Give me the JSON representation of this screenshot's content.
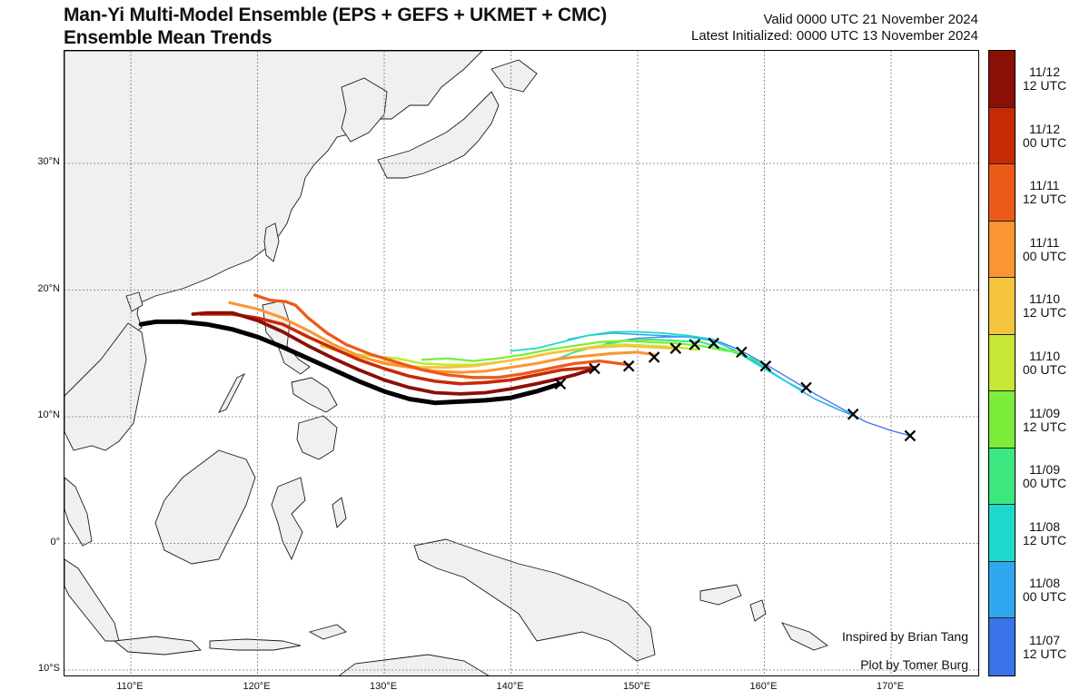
{
  "header": {
    "title_line1": "Man-Yi Multi-Model Ensemble (EPS + GEFS + UKMET + CMC)",
    "title_line2": "Ensemble Mean Trends",
    "valid": "Valid 0000 UTC 21 November 2024",
    "latest": "Latest Initialized: 0000 UTC 13 November 2024"
  },
  "axes": {
    "lat_labels": [
      "30°N",
      "20°N",
      "10°N",
      "0°",
      "10°S"
    ],
    "lon_labels": [
      "110°E",
      "120°E",
      "130°E",
      "140°E",
      "150°E",
      "160°E",
      "170°E"
    ]
  },
  "colorbar": {
    "entries": [
      {
        "date": "11/12",
        "time": "12 UTC",
        "color": "#8a0f05"
      },
      {
        "date": "11/12",
        "time": "00 UTC",
        "color": "#c72a06"
      },
      {
        "date": "11/11",
        "time": "12 UTC",
        "color": "#ec5a1a"
      },
      {
        "date": "11/11",
        "time": "00 UTC",
        "color": "#fb9531"
      },
      {
        "date": "11/10",
        "time": "12 UTC",
        "color": "#f3c43c"
      },
      {
        "date": "11/10",
        "time": "00 UTC",
        "color": "#c6e834"
      },
      {
        "date": "11/09",
        "time": "12 UTC",
        "color": "#7cee3a"
      },
      {
        "date": "11/09",
        "time": "00 UTC",
        "color": "#3ce87f"
      },
      {
        "date": "11/08",
        "time": "12 UTC",
        "color": "#1fd8cc"
      },
      {
        "date": "11/08",
        "time": "00 UTC",
        "color": "#2fa8f0"
      },
      {
        "date": "11/07",
        "time": "12 UTC",
        "color": "#3b73e8"
      }
    ]
  },
  "credits": {
    "inspired": "Inspired by Brian Tang",
    "plot": "Plot by Tomer Burg"
  },
  "tracks": [
    {
      "init": "11/07 12 UTC",
      "color": "#3b73e8",
      "points": [
        [
          146.3,
          15.4
        ],
        [
          148,
          15.9
        ],
        [
          150,
          16.2
        ],
        [
          152,
          16.3
        ],
        [
          154,
          16.3
        ],
        [
          156,
          16.1
        ],
        [
          158,
          15.3
        ],
        [
          160,
          14.2
        ],
        [
          162,
          13.0
        ],
        [
          164,
          11.8
        ],
        [
          166,
          10.7
        ],
        [
          168,
          9.6
        ],
        [
          170,
          8.9
        ],
        [
          171.5,
          8.5
        ]
      ]
    },
    {
      "init": "11/08 00 UTC",
      "color": "#2fa8f0",
      "points": [
        [
          144.5,
          16.1
        ],
        [
          146,
          16.4
        ],
        [
          148,
          16.6
        ],
        [
          150,
          16.5
        ],
        [
          152,
          16.4
        ],
        [
          154,
          16.3
        ],
        [
          156,
          16.0
        ],
        [
          158,
          15.1
        ],
        [
          160,
          13.9
        ],
        [
          162,
          12.6
        ],
        [
          164,
          11.4
        ],
        [
          166,
          10.5
        ],
        [
          167,
          10.1
        ]
      ]
    },
    {
      "init": "11/08 12 UTC",
      "color": "#1fd8cc",
      "points": [
        [
          140,
          15.2
        ],
        [
          142,
          15.4
        ],
        [
          144,
          15.9
        ],
        [
          146,
          16.4
        ],
        [
          148,
          16.7
        ],
        [
          150,
          16.7
        ],
        [
          152,
          16.6
        ],
        [
          154,
          16.4
        ],
        [
          156,
          16.1
        ],
        [
          158,
          15.0
        ],
        [
          160,
          13.8
        ],
        [
          161.5,
          12.9
        ],
        [
          163,
          12.1
        ]
      ]
    },
    {
      "init": "11/09 00 UTC",
      "color": "#3ce87f",
      "points": [
        [
          143.5,
          14.5
        ],
        [
          145,
          15.1
        ],
        [
          147,
          15.6
        ],
        [
          149,
          16.0
        ],
        [
          151,
          16.1
        ],
        [
          153,
          16.0
        ],
        [
          155,
          15.9
        ],
        [
          157,
          15.3
        ],
        [
          159,
          14.6
        ],
        [
          160.2,
          14.0
        ]
      ]
    },
    {
      "init": "11/09 12 UTC",
      "color": "#7cee3a",
      "points": [
        [
          133,
          14.5
        ],
        [
          135,
          14.6
        ],
        [
          137,
          14.4
        ],
        [
          139,
          14.6
        ],
        [
          141,
          14.9
        ],
        [
          143,
          15.3
        ],
        [
          145,
          15.6
        ],
        [
          147,
          15.9
        ],
        [
          149,
          16.0
        ],
        [
          151,
          15.9
        ],
        [
          153,
          15.8
        ],
        [
          155,
          15.6
        ],
        [
          157,
          15.2
        ],
        [
          158.2,
          15.1
        ]
      ]
    },
    {
      "init": "11/10 00 UTC",
      "color": "#c6e834",
      "points": [
        [
          127,
          15.0
        ],
        [
          129,
          14.8
        ],
        [
          131,
          14.6
        ],
        [
          133,
          14.2
        ],
        [
          135,
          14.1
        ],
        [
          137,
          14.1
        ],
        [
          139,
          14.3
        ],
        [
          141,
          14.6
        ],
        [
          143,
          15.0
        ],
        [
          145,
          15.3
        ],
        [
          147,
          15.6
        ],
        [
          149,
          15.7
        ],
        [
          151,
          15.6
        ],
        [
          153,
          15.5
        ],
        [
          154.7,
          15.3
        ]
      ]
    },
    {
      "init": "11/10 12 UTC",
      "color": "#f3c43c",
      "points": [
        [
          125,
          15.6
        ],
        [
          127,
          15.0
        ],
        [
          129,
          14.5
        ],
        [
          131,
          14.1
        ],
        [
          133,
          13.9
        ],
        [
          135,
          13.9
        ],
        [
          137,
          14.0
        ],
        [
          139,
          14.3
        ],
        [
          141,
          14.6
        ],
        [
          143,
          15.0
        ],
        [
          145,
          15.3
        ],
        [
          147,
          15.5
        ],
        [
          149,
          15.6
        ],
        [
          151,
          15.5
        ],
        [
          153,
          15.4
        ]
      ]
    },
    {
      "init": "11/11 00 UTC",
      "color": "#fb9531",
      "points": [
        [
          117.8,
          19.0
        ],
        [
          120,
          18.5
        ],
        [
          122,
          17.8
        ],
        [
          124,
          16.8
        ],
        [
          126,
          15.7
        ],
        [
          128,
          14.8
        ],
        [
          130,
          14.2
        ],
        [
          132,
          13.9
        ],
        [
          134,
          13.6
        ],
        [
          136,
          13.5
        ],
        [
          138,
          13.6
        ],
        [
          140,
          13.9
        ],
        [
          142,
          14.2
        ],
        [
          144,
          14.6
        ],
        [
          146,
          14.8
        ],
        [
          148,
          15.0
        ],
        [
          150,
          15.1
        ],
        [
          151.3,
          14.9
        ]
      ]
    },
    {
      "init": "11/11 12 UTC",
      "color": "#ec5a1a",
      "points": [
        [
          119.8,
          19.6
        ],
        [
          121,
          19.2
        ],
        [
          122.2,
          19.1
        ],
        [
          123,
          18.8
        ],
        [
          124,
          17.8
        ],
        [
          125.5,
          16.6
        ],
        [
          127,
          15.7
        ],
        [
          129,
          14.9
        ],
        [
          131,
          14.3
        ],
        [
          133,
          13.7
        ],
        [
          135,
          13.3
        ],
        [
          137,
          13.1
        ],
        [
          139,
          13.1
        ],
        [
          141,
          13.4
        ],
        [
          143,
          13.8
        ],
        [
          145,
          14.2
        ],
        [
          147,
          14.4
        ],
        [
          149.3,
          14.1
        ]
      ]
    },
    {
      "init": "11/12 00 UTC",
      "color": "#c72a06",
      "points": [
        [
          115.5,
          18.1
        ],
        [
          118,
          18.1
        ],
        [
          120,
          17.8
        ],
        [
          122,
          17.3
        ],
        [
          124,
          16.3
        ],
        [
          126,
          15.4
        ],
        [
          128,
          14.5
        ],
        [
          130,
          13.8
        ],
        [
          132,
          13.2
        ],
        [
          134,
          12.8
        ],
        [
          136,
          12.6
        ],
        [
          138,
          12.7
        ],
        [
          140,
          12.9
        ],
        [
          142,
          13.3
        ],
        [
          144,
          13.7
        ],
        [
          146.6,
          13.9
        ]
      ]
    },
    {
      "init": "11/12 12 UTC",
      "color": "#8a0f05",
      "points": [
        [
          114.9,
          18.1
        ],
        [
          116,
          18.2
        ],
        [
          118,
          18.2
        ],
        [
          120,
          17.6
        ],
        [
          122,
          16.7
        ],
        [
          124,
          15.6
        ],
        [
          126,
          14.6
        ],
        [
          128,
          13.7
        ],
        [
          130,
          12.9
        ],
        [
          132,
          12.3
        ],
        [
          134,
          11.9
        ],
        [
          136,
          11.8
        ],
        [
          138,
          11.9
        ],
        [
          140,
          12.2
        ],
        [
          142,
          12.6
        ],
        [
          143.8,
          13.0
        ],
        [
          145,
          13.3
        ],
        [
          146.6,
          13.8
        ]
      ]
    },
    {
      "init": "latest",
      "color": "#000000",
      "points": [
        [
          110.8,
          17.3
        ],
        [
          112,
          17.5
        ],
        [
          114,
          17.5
        ],
        [
          116,
          17.3
        ],
        [
          118,
          16.9
        ],
        [
          120,
          16.3
        ],
        [
          122,
          15.5
        ],
        [
          124,
          14.6
        ],
        [
          126,
          13.7
        ],
        [
          128,
          12.8
        ],
        [
          130,
          12.0
        ],
        [
          132,
          11.4
        ],
        [
          134,
          11.1
        ],
        [
          136,
          11.2
        ],
        [
          138,
          11.3
        ],
        [
          140,
          11.5
        ],
        [
          142,
          12.0
        ],
        [
          143.9,
          12.6
        ]
      ]
    }
  ],
  "endpoints": [
    [
      143.9,
      12.6
    ],
    [
      146.6,
      13.8
    ],
    [
      149.3,
      14.0
    ],
    [
      151.3,
      14.7
    ],
    [
      153,
      15.4
    ],
    [
      154.5,
      15.7
    ],
    [
      156,
      15.8
    ],
    [
      158.2,
      15.1
    ],
    [
      160.1,
      14.0
    ],
    [
      163.3,
      12.3
    ],
    [
      167,
      10.2
    ],
    [
      171.5,
      8.5
    ]
  ]
}
